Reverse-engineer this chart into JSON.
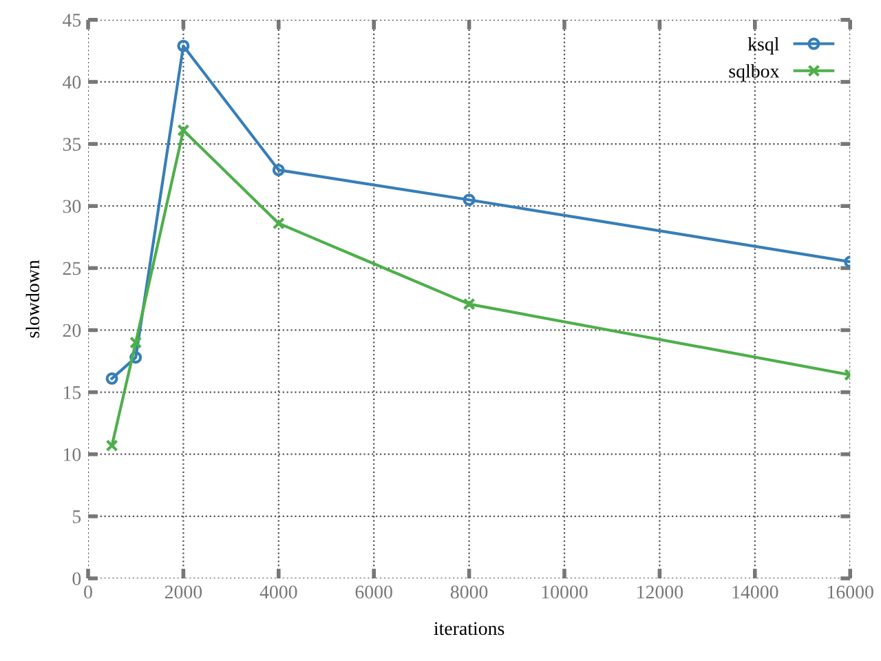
{
  "chart_data": {
    "type": "line",
    "xlabel": "iterations",
    "ylabel": "slowdown",
    "x": [
      500,
      1000,
      2000,
      4000,
      8000,
      16000
    ],
    "series": [
      {
        "name": "ksql",
        "color": "#377eb8",
        "marker": "circle",
        "values": [
          16.1,
          17.8,
          42.9,
          32.9,
          30.5,
          25.5
        ]
      },
      {
        "name": "sqlbox",
        "color": "#4daf4a",
        "marker": "cross",
        "values": [
          10.7,
          19.0,
          36.1,
          28.6,
          22.1,
          16.4
        ]
      }
    ],
    "xlim": [
      0,
      16000
    ],
    "xticks": [
      0,
      2000,
      4000,
      6000,
      8000,
      10000,
      12000,
      14000,
      16000
    ],
    "ylim": [
      0,
      45
    ],
    "yticks": [
      0,
      5,
      10,
      15,
      20,
      25,
      30,
      35,
      40,
      45
    ],
    "grid": true,
    "legend": "top right",
    "line_style": "solid"
  }
}
